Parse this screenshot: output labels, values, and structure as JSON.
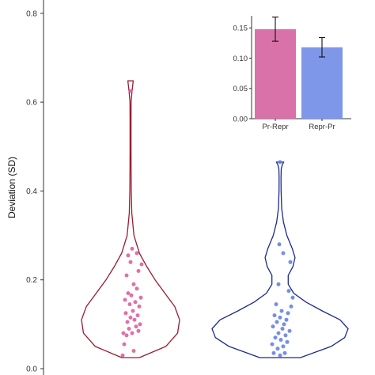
{
  "chart_data": [
    {
      "type": "violin",
      "ylabel": "Deviation (SD)",
      "ylim": [
        0,
        0.83
      ],
      "yticks": [
        "0.0",
        "0.2",
        "0.4",
        "0.6",
        "0.8"
      ],
      "grid": false,
      "groups": [
        {
          "name": "Pr-Repr",
          "line_color": "#9b1b30",
          "point_color": "#d9589a",
          "outline": [
            [
              0.025,
              0.18
            ],
            [
              0.05,
              0.72
            ],
            [
              0.08,
              0.96
            ],
            [
              0.11,
              1.0
            ],
            [
              0.14,
              0.9
            ],
            [
              0.17,
              0.7
            ],
            [
              0.2,
              0.5
            ],
            [
              0.23,
              0.33
            ],
            [
              0.26,
              0.18
            ],
            [
              0.3,
              0.07
            ],
            [
              0.35,
              0.025
            ],
            [
              0.4,
              0.015
            ],
            [
              0.45,
              0.012
            ],
            [
              0.5,
              0.01
            ],
            [
              0.55,
              0.01
            ],
            [
              0.6,
              0.012
            ],
            [
              0.625,
              0.03
            ],
            [
              0.648,
              0.055
            ]
          ],
          "points": [
            [
              -0.1,
              0.03
            ],
            [
              0.04,
              0.04
            ],
            [
              -0.08,
              0.055
            ],
            [
              -0.05,
              0.075
            ],
            [
              -0.09,
              0.08
            ],
            [
              0.02,
              0.08
            ],
            [
              0.1,
              0.085
            ],
            [
              -0.02,
              0.09
            ],
            [
              0.07,
              0.095
            ],
            [
              0.12,
              0.1
            ],
            [
              -0.04,
              0.105
            ],
            [
              0.05,
              0.11
            ],
            [
              0.0,
              0.115
            ],
            [
              0.09,
              0.12
            ],
            [
              -0.06,
              0.125
            ],
            [
              0.03,
              0.13
            ],
            [
              0.11,
              0.14
            ],
            [
              -0.01,
              0.145
            ],
            [
              0.06,
              0.15
            ],
            [
              -0.07,
              0.155
            ],
            [
              0.13,
              0.16
            ],
            [
              0.01,
              0.165
            ],
            [
              -0.03,
              0.17
            ],
            [
              0.08,
              0.18
            ],
            [
              0.04,
              0.19
            ],
            [
              -0.05,
              0.21
            ],
            [
              0.1,
              0.22
            ],
            [
              0.14,
              0.235
            ],
            [
              0.0,
              0.24
            ],
            [
              -0.03,
              0.255
            ],
            [
              0.08,
              0.26
            ],
            [
              0.02,
              0.27
            ],
            [
              0.0,
              0.625
            ]
          ]
        },
        {
          "name": "Repr-Pr",
          "line_color": "#1a2a8c",
          "point_color": "#5d7be0",
          "outline": [
            [
              0.025,
              0.3
            ],
            [
              0.05,
              0.75
            ],
            [
              0.07,
              0.95
            ],
            [
              0.09,
              1.0
            ],
            [
              0.11,
              0.88
            ],
            [
              0.13,
              0.62
            ],
            [
              0.15,
              0.38
            ],
            [
              0.17,
              0.2
            ],
            [
              0.19,
              0.12
            ],
            [
              0.21,
              0.12
            ],
            [
              0.23,
              0.19
            ],
            [
              0.25,
              0.22
            ],
            [
              0.27,
              0.18
            ],
            [
              0.3,
              0.1
            ],
            [
              0.33,
              0.05
            ],
            [
              0.36,
              0.025
            ],
            [
              0.4,
              0.015
            ],
            [
              0.43,
              0.014
            ],
            [
              0.45,
              0.018
            ],
            [
              0.46,
              0.035
            ],
            [
              0.465,
              0.055
            ]
          ],
          "points": [
            [
              0.0,
              0.03
            ],
            [
              -0.08,
              0.035
            ],
            [
              0.06,
              0.035
            ],
            [
              -0.03,
              0.045
            ],
            [
              0.04,
              0.05
            ],
            [
              -0.1,
              0.055
            ],
            [
              0.09,
              0.06
            ],
            [
              0.01,
              0.065
            ],
            [
              -0.06,
              0.07
            ],
            [
              0.07,
              0.075
            ],
            [
              -0.02,
              0.08
            ],
            [
              0.12,
              0.085
            ],
            [
              0.03,
              0.09
            ],
            [
              -0.09,
              0.095
            ],
            [
              0.05,
              0.1
            ],
            [
              -0.04,
              0.105
            ],
            [
              0.08,
              0.11
            ],
            [
              0.0,
              0.115
            ],
            [
              -0.07,
              0.12
            ],
            [
              0.1,
              0.125
            ],
            [
              0.02,
              0.13
            ],
            [
              0.14,
              0.14
            ],
            [
              -0.05,
              0.145
            ],
            [
              0.16,
              0.16
            ],
            [
              0.11,
              0.175
            ],
            [
              -0.02,
              0.19
            ],
            [
              0.13,
              0.24
            ],
            [
              0.04,
              0.26
            ],
            [
              -0.01,
              0.28
            ],
            [
              0.0,
              0.465
            ]
          ]
        }
      ]
    },
    {
      "type": "bar",
      "categories": [
        "Pr-Repr",
        "Repr-Pr"
      ],
      "values": [
        0.148,
        0.118
      ],
      "errors": [
        0.02,
        0.016
      ],
      "colors": [
        "#d972a8",
        "#7f97e8"
      ],
      "ylim": [
        0,
        0.17
      ],
      "yticks": [
        "0.00",
        "0.05",
        "0.10",
        "0.15"
      ]
    }
  ]
}
